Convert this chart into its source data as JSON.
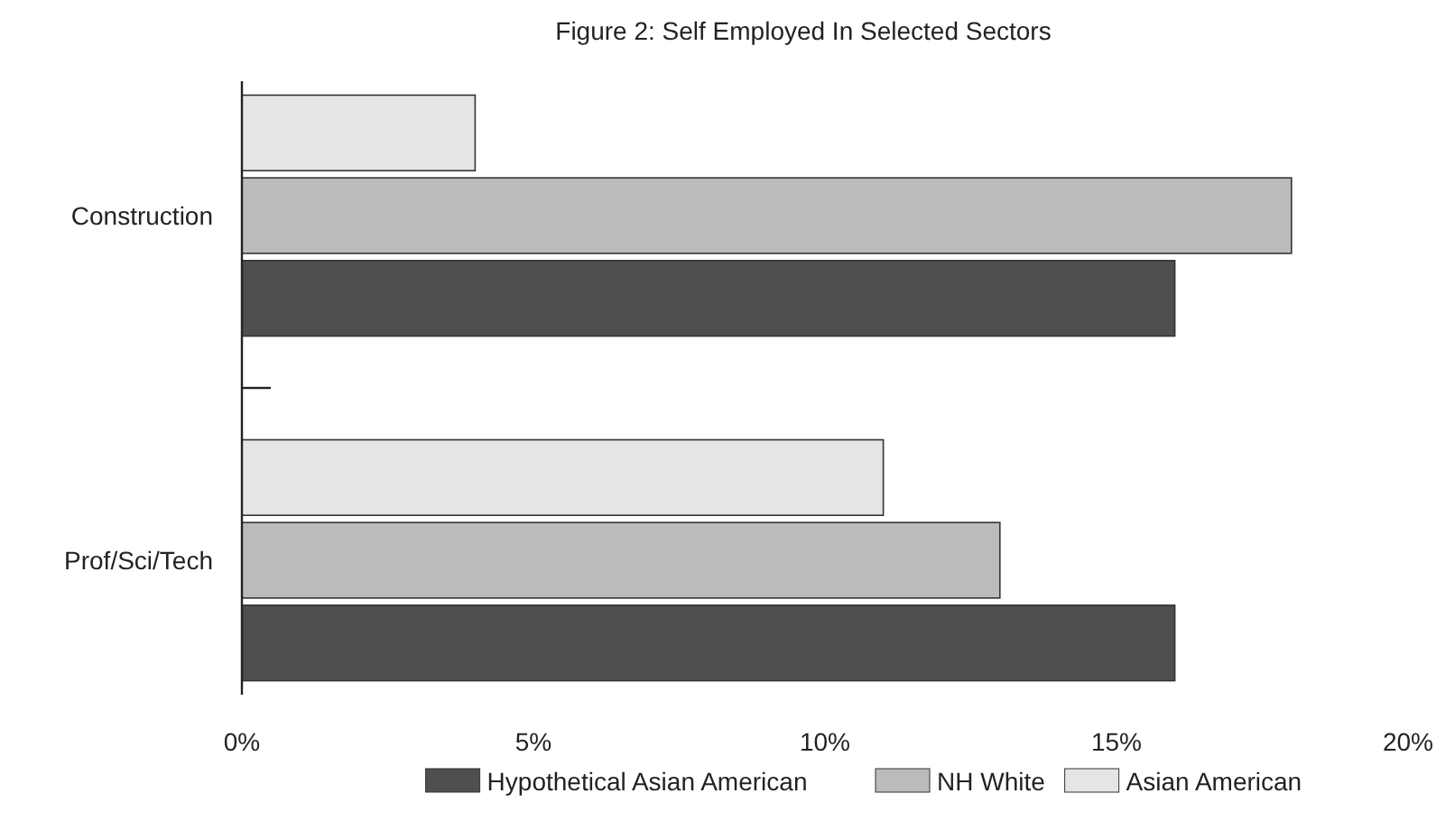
{
  "chart_data": {
    "type": "bar",
    "orientation": "horizontal",
    "title": "Figure 2: Self Employed In Selected Sectors",
    "categories": [
      "Construction",
      "Prof/Sci/Tech"
    ],
    "series": [
      {
        "name": "Hypothetical Asian American",
        "color": "#4f4f4f",
        "values": [
          16,
          16
        ]
      },
      {
        "name": "NH White",
        "color": "#bbbbbd",
        "values": [
          18,
          13
        ]
      },
      {
        "name": "Asian American",
        "color": "#e4e5e6",
        "values": [
          4,
          11
        ]
      }
    ],
    "xlim": [
      0,
      20
    ],
    "xticks": [
      {
        "value": 0,
        "label": "0%"
      },
      {
        "value": 5,
        "label": "5%"
      },
      {
        "value": 10,
        "label": "10%"
      },
      {
        "value": 15,
        "label": "15%"
      },
      {
        "value": 20,
        "label": "20%"
      }
    ],
    "grid": false,
    "legend": "bottom"
  }
}
